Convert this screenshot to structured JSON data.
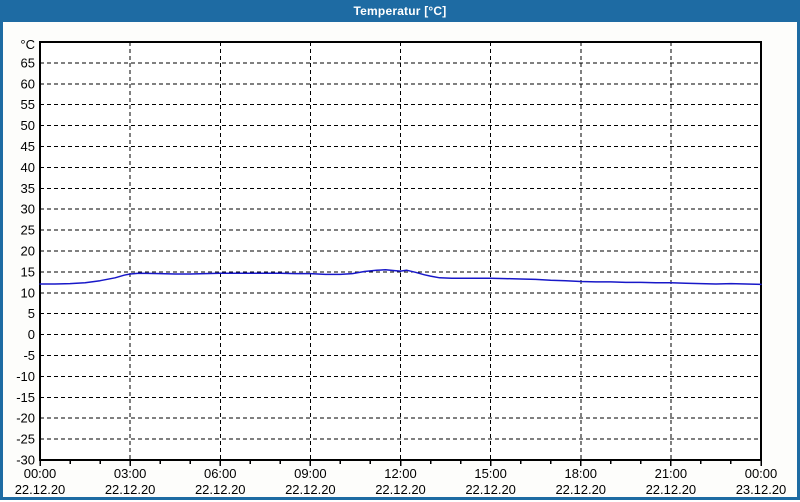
{
  "window": {
    "title": "Temperatur [°C]",
    "titlebar_color": "#1e6ba3",
    "border_color": "#1e6ba3"
  },
  "chart_data": {
    "type": "line",
    "title": "Temperatur [°C]",
    "y_axis_unit": "°C",
    "ylim": [
      -30,
      70
    ],
    "xlim": [
      0,
      24
    ],
    "grid": "dashed-black",
    "legend": "none",
    "y_tick_values": [
      65,
      60,
      55,
      50,
      45,
      40,
      35,
      30,
      25,
      20,
      15,
      10,
      5,
      0,
      -5,
      -10,
      -15,
      -20,
      -25,
      -30
    ],
    "x_minor_tick_step_hours": 1,
    "x_ticks": [
      {
        "hour": 0,
        "time": "00:00",
        "date": "22.12.20"
      },
      {
        "hour": 3,
        "time": "03:00",
        "date": "22.12.20"
      },
      {
        "hour": 6,
        "time": "06:00",
        "date": "22.12.20"
      },
      {
        "hour": 9,
        "time": "09:00",
        "date": "22.12.20"
      },
      {
        "hour": 12,
        "time": "12:00",
        "date": "22.12.20"
      },
      {
        "hour": 15,
        "time": "15:00",
        "date": "22.12.20"
      },
      {
        "hour": 18,
        "time": "18:00",
        "date": "22.12.20"
      },
      {
        "hour": 21,
        "time": "21:00",
        "date": "22.12.20"
      },
      {
        "hour": 24,
        "time": "00:00",
        "date": "23.12.20"
      }
    ],
    "series": [
      {
        "name": "Temperatur",
        "color": "#1818c8",
        "points": [
          [
            0,
            12.1
          ],
          [
            0.5,
            12.1
          ],
          [
            1,
            12.2
          ],
          [
            1.5,
            12.4
          ],
          [
            2,
            12.9
          ],
          [
            2.5,
            13.6
          ],
          [
            2.8,
            14.2
          ],
          [
            3,
            14.5
          ],
          [
            3.3,
            14.7
          ],
          [
            4,
            14.6
          ],
          [
            4.5,
            14.5
          ],
          [
            5,
            14.5
          ],
          [
            5.5,
            14.6
          ],
          [
            6,
            14.7
          ],
          [
            6.5,
            14.7
          ],
          [
            7,
            14.7
          ],
          [
            7.5,
            14.7
          ],
          [
            8,
            14.7
          ],
          [
            8.5,
            14.6
          ],
          [
            9,
            14.6
          ],
          [
            9.5,
            14.4
          ],
          [
            10,
            14.4
          ],
          [
            10.4,
            14.6
          ],
          [
            10.8,
            15.1
          ],
          [
            11.2,
            15.4
          ],
          [
            11.5,
            15.5
          ],
          [
            11.8,
            15.3
          ],
          [
            12,
            15.2
          ],
          [
            12.2,
            15.4
          ],
          [
            12.5,
            14.9
          ],
          [
            12.8,
            14.3
          ],
          [
            13,
            14.0
          ],
          [
            13.3,
            13.6
          ],
          [
            13.7,
            13.5
          ],
          [
            14,
            13.5
          ],
          [
            14.5,
            13.5
          ],
          [
            15,
            13.5
          ],
          [
            15.5,
            13.4
          ],
          [
            16,
            13.3
          ],
          [
            16.5,
            13.2
          ],
          [
            17,
            13.0
          ],
          [
            17.5,
            12.9
          ],
          [
            18,
            12.7
          ],
          [
            18.5,
            12.6
          ],
          [
            19,
            12.6
          ],
          [
            19.5,
            12.5
          ],
          [
            20,
            12.5
          ],
          [
            20.5,
            12.4
          ],
          [
            21,
            12.4
          ],
          [
            21.5,
            12.3
          ],
          [
            22,
            12.2
          ],
          [
            22.5,
            12.1
          ],
          [
            23,
            12.2
          ],
          [
            23.5,
            12.1
          ],
          [
            24,
            12.0
          ]
        ]
      }
    ]
  }
}
